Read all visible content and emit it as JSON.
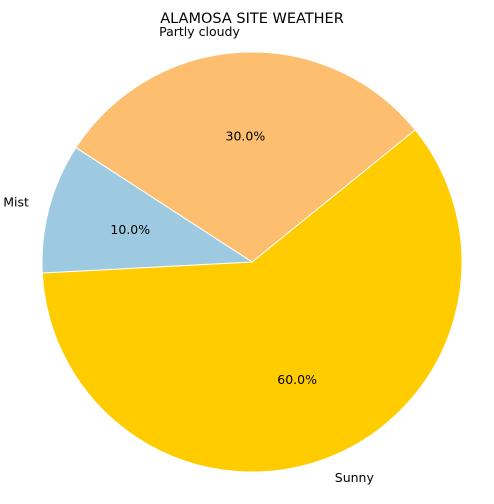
{
  "chart_data": {
    "type": "pie",
    "title": "ALAMOSA SITE WEATHER",
    "slices": [
      {
        "label": "Sunny",
        "value": 60.0,
        "pct_label": "60.0%",
        "color": "#ffcc00"
      },
      {
        "label": "Partly cloudy",
        "value": 30.0,
        "pct_label": "30.0%",
        "color": "#fdbf6f"
      },
      {
        "label": "Mist",
        "value": 10.0,
        "pct_label": "10.0%",
        "color": "#9ecae1"
      }
    ],
    "start_angle_deg": 183,
    "direction": "counterclockwise"
  }
}
